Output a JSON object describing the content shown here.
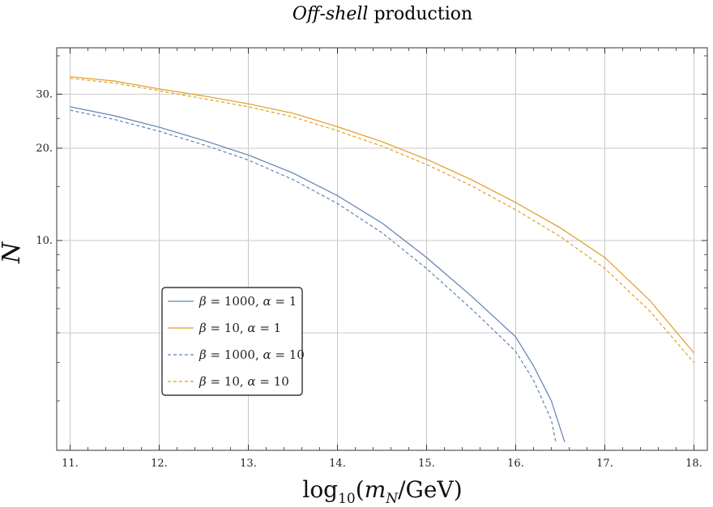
{
  "chart_data": {
    "type": "line",
    "title_italic": "Off-shell",
    "title_rest": " production",
    "xlabel_prefix": "log",
    "xlabel_sub": "10",
    "xlabel_open": "(",
    "xlabel_m": "m",
    "xlabel_msub": "N",
    "xlabel_rest": "/GeV)",
    "ylabel": "N",
    "xlim": [
      10.85,
      18.15
    ],
    "ylim": [
      2.07,
      42.5
    ],
    "yscale": "log",
    "grid": true,
    "legend_placement": "lower-left",
    "x_ticks": [
      {
        "value": 11,
        "label": "11."
      },
      {
        "value": 12,
        "label": "12."
      },
      {
        "value": 13,
        "label": "13."
      },
      {
        "value": 14,
        "label": "14."
      },
      {
        "value": 15,
        "label": "15."
      },
      {
        "value": 16,
        "label": "16."
      },
      {
        "value": 17,
        "label": "17."
      },
      {
        "value": 18,
        "label": "18."
      }
    ],
    "y_ticks": [
      {
        "value": 10,
        "label": "10."
      },
      {
        "value": 20,
        "label": "20."
      },
      {
        "value": 30,
        "label": "30."
      }
    ],
    "y_gridlines": [
      5,
      10,
      20,
      30
    ],
    "series": [
      {
        "name": "β = 1000, α = 1",
        "name_parts": [
          "β",
          " = 1000, ",
          "α",
          " = 1"
        ],
        "color": "#5e81b5",
        "dash": "solid",
        "points": [
          [
            11.0,
            27.3
          ],
          [
            11.5,
            25.5
          ],
          [
            12.0,
            23.4
          ],
          [
            12.5,
            21.2
          ],
          [
            13.0,
            19.0
          ],
          [
            13.5,
            16.6
          ],
          [
            14.0,
            14.0
          ],
          [
            14.5,
            11.4
          ],
          [
            15.0,
            8.8
          ],
          [
            15.5,
            6.6
          ],
          [
            16.0,
            4.85
          ],
          [
            16.2,
            3.9
          ],
          [
            16.4,
            3.0
          ],
          [
            16.55,
            2.2
          ]
        ]
      },
      {
        "name": "β = 10, α = 1",
        "name_parts": [
          "β",
          " = 10, ",
          "α",
          " = 1"
        ],
        "color": "#e19c24",
        "dash": "solid",
        "points": [
          [
            11.0,
            34.2
          ],
          [
            11.5,
            33.1
          ],
          [
            12.0,
            31.2
          ],
          [
            12.5,
            29.6
          ],
          [
            13.0,
            27.9
          ],
          [
            13.5,
            26.0
          ],
          [
            14.0,
            23.5
          ],
          [
            14.5,
            21.0
          ],
          [
            15.0,
            18.4
          ],
          [
            15.5,
            15.8
          ],
          [
            16.0,
            13.3
          ],
          [
            16.5,
            11.0
          ],
          [
            17.0,
            8.8
          ],
          [
            17.5,
            6.4
          ],
          [
            18.0,
            4.3
          ]
        ]
      },
      {
        "name": "β = 1000, α = 10",
        "name_parts": [
          "β",
          " = 1000, ",
          "α",
          " = 10"
        ],
        "color": "#5e81b5",
        "dash": "dashed",
        "points": [
          [
            11.0,
            26.6
          ],
          [
            11.5,
            24.8
          ],
          [
            12.0,
            22.7
          ],
          [
            12.5,
            20.5
          ],
          [
            13.0,
            18.3
          ],
          [
            13.5,
            15.8
          ],
          [
            14.0,
            13.2
          ],
          [
            14.5,
            10.6
          ],
          [
            15.0,
            8.1
          ],
          [
            15.5,
            6.0
          ],
          [
            16.0,
            4.35
          ],
          [
            16.2,
            3.5
          ],
          [
            16.4,
            2.6
          ],
          [
            16.45,
            2.2
          ]
        ]
      },
      {
        "name": "β = 10, α = 10",
        "name_parts": [
          "β",
          " = 10, ",
          "α",
          " = 10"
        ],
        "color": "#e19c24",
        "dash": "dashed",
        "points": [
          [
            11.0,
            33.8
          ],
          [
            11.5,
            32.6
          ],
          [
            12.0,
            30.8
          ],
          [
            12.5,
            29.0
          ],
          [
            13.0,
            27.3
          ],
          [
            13.5,
            25.3
          ],
          [
            14.0,
            22.8
          ],
          [
            14.5,
            20.3
          ],
          [
            15.0,
            17.7
          ],
          [
            15.5,
            15.1
          ],
          [
            16.0,
            12.6
          ],
          [
            16.5,
            10.3
          ],
          [
            17.0,
            8.1
          ],
          [
            17.5,
            5.9
          ],
          [
            18.0,
            4.0
          ]
        ]
      }
    ]
  }
}
